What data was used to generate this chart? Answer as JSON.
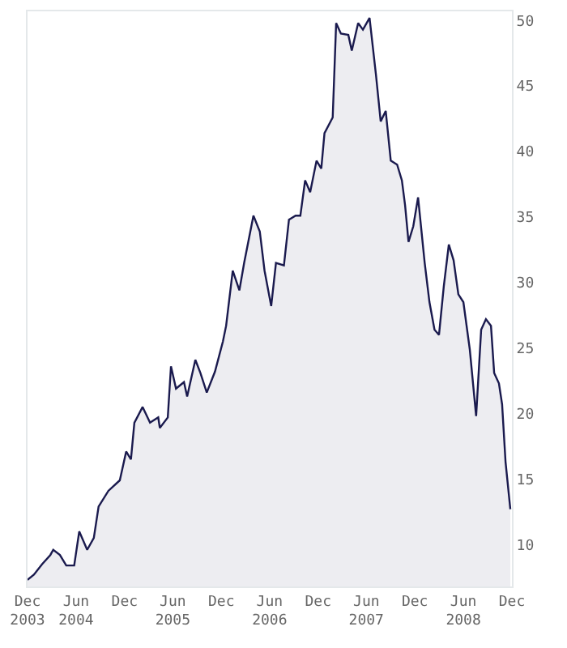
{
  "chart_data": {
    "type": "area",
    "x": [
      "2003-12-01",
      "2003-12-25",
      "2004-01-25",
      "2004-02-25",
      "2004-03-07",
      "2004-04-01",
      "2004-04-25",
      "2004-05-25",
      "2004-06-13",
      "2004-07-13",
      "2004-08-07",
      "2004-08-25",
      "2004-10-01",
      "2004-11-13",
      "2004-12-07",
      "2004-12-25",
      "2005-01-07",
      "2005-02-07",
      "2005-03-07",
      "2005-04-07",
      "2005-04-13",
      "2005-05-13",
      "2005-05-25",
      "2005-06-13",
      "2005-07-13",
      "2005-07-25",
      "2005-08-25",
      "2005-09-13",
      "2005-10-07",
      "2005-11-07",
      "2005-12-07",
      "2005-12-19",
      "2006-01-13",
      "2006-02-07",
      "2006-02-25",
      "2006-04-01",
      "2006-04-25",
      "2006-05-13",
      "2006-06-07",
      "2006-06-25",
      "2006-07-25",
      "2006-08-13",
      "2006-09-07",
      "2006-09-25",
      "2006-10-13",
      "2006-11-01",
      "2006-11-25",
      "2006-12-13",
      "2006-12-25",
      "2007-01-25",
      "2007-02-07",
      "2007-02-25",
      "2007-03-25",
      "2007-04-07",
      "2007-05-01",
      "2007-05-19",
      "2007-06-13",
      "2007-07-07",
      "2007-07-25",
      "2007-08-13",
      "2007-09-01",
      "2007-09-25",
      "2007-10-13",
      "2007-10-25",
      "2007-11-07",
      "2007-11-25",
      "2007-12-13",
      "2008-01-07",
      "2008-01-25",
      "2008-02-13",
      "2008-03-01",
      "2008-03-19",
      "2008-04-07",
      "2008-04-25",
      "2008-05-13",
      "2008-06-01",
      "2008-06-25",
      "2008-07-19",
      "2008-08-07",
      "2008-08-25",
      "2008-09-13",
      "2008-09-25",
      "2008-10-13",
      "2008-10-25",
      "2008-11-07",
      "2008-11-25"
    ],
    "series": [
      {
        "color": "#1a1a4e",
        "values": [
          7.3,
          7.7,
          8.5,
          9.2,
          9.6,
          9.2,
          8.4,
          8.4,
          11.0,
          9.6,
          10.5,
          12.9,
          14.1,
          14.9,
          17.1,
          16.5,
          19.3,
          20.5,
          19.3,
          19.7,
          18.9,
          19.7,
          23.6,
          21.9,
          22.4,
          21.3,
          24.1,
          23.1,
          21.6,
          23.2,
          25.5,
          26.7,
          30.9,
          29.4,
          31.5,
          35.1,
          33.9,
          30.9,
          28.2,
          31.5,
          31.3,
          34.8,
          35.1,
          35.1,
          37.8,
          36.9,
          39.3,
          38.7,
          41.4,
          42.6,
          49.8,
          49.0,
          48.9,
          47.7,
          49.8,
          49.3,
          50.2,
          45.9,
          42.3,
          43.1,
          39.3,
          39.0,
          37.8,
          35.9,
          33.1,
          34.3,
          36.5,
          31.5,
          28.5,
          26.4,
          26.0,
          29.7,
          32.9,
          31.7,
          29.1,
          28.5,
          24.9,
          19.8,
          26.4,
          27.2,
          26.7,
          23.1,
          22.3,
          20.7,
          16.3,
          12.7
        ]
      }
    ],
    "xlim": [
      "2003-12-01",
      "2008-12-01"
    ],
    "xticks": [
      {
        "value": "2003-12-01",
        "label": "Dec\n2003"
      },
      {
        "value": "2004-06-01",
        "label": "Jun\n2004"
      },
      {
        "value": "2004-12-01",
        "label": "Dec"
      },
      {
        "value": "2005-06-01",
        "label": "Jun\n2005"
      },
      {
        "value": "2005-12-01",
        "label": "Dec"
      },
      {
        "value": "2006-06-01",
        "label": "Jun\n2006"
      },
      {
        "value": "2006-12-01",
        "label": "Dec"
      },
      {
        "value": "2007-06-01",
        "label": "Jun\n2007"
      },
      {
        "value": "2007-12-01",
        "label": "Dec"
      },
      {
        "value": "2008-06-01",
        "label": "Jun\n2008"
      },
      {
        "value": "2008-12-01",
        "label": "Dec"
      }
    ],
    "ylim": [
      6.8,
      50.7
    ],
    "yticks": [
      10,
      15,
      20,
      25,
      30,
      35,
      40,
      45,
      50
    ],
    "legend": false
  }
}
